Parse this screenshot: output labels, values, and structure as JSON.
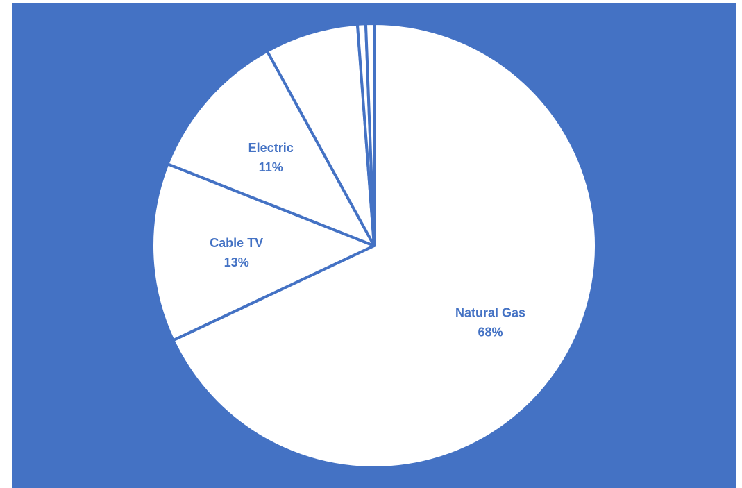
{
  "colors": {
    "background": "#4472C4",
    "slice_fill": "#FFFFFF",
    "slice_stroke": "#4472C4",
    "label": "#4472C4"
  },
  "chart_data": {
    "type": "pie",
    "title": "",
    "start_angle_deg": 0,
    "direction": "clockwise",
    "slices": [
      {
        "label": "Natural Gas",
        "value": 68,
        "display": "68%",
        "labeled": true
      },
      {
        "label": "Cable TV",
        "value": 13,
        "display": "13%",
        "labeled": true
      },
      {
        "label": "Electric",
        "value": 11,
        "display": "11%",
        "labeled": true
      },
      {
        "label": "",
        "value": 6.8,
        "display": "",
        "labeled": false
      },
      {
        "label": "",
        "value": 0.6,
        "display": "",
        "labeled": false
      },
      {
        "label": "",
        "value": 0.6,
        "display": "",
        "labeled": false
      }
    ]
  }
}
